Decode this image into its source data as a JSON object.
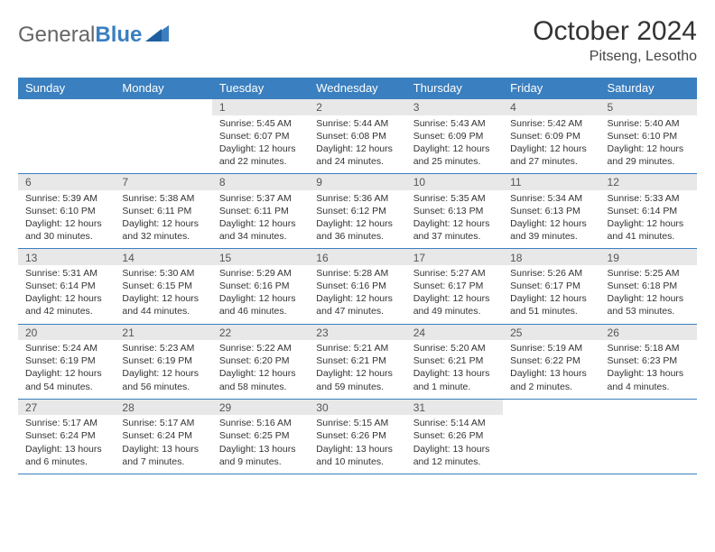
{
  "brand": {
    "part1": "General",
    "part2": "Blue"
  },
  "title": "October 2024",
  "location": "Pitseng, Lesotho",
  "colors": {
    "header_bg": "#3a7fbf",
    "header_fg": "#ffffff",
    "daynum_bg": "#e8e8e8",
    "border": "#3a7fbf",
    "text": "#333333"
  },
  "day_labels": [
    "Sunday",
    "Monday",
    "Tuesday",
    "Wednesday",
    "Thursday",
    "Friday",
    "Saturday"
  ],
  "weeks": [
    [
      null,
      null,
      {
        "n": "1",
        "sr": "Sunrise: 5:45 AM",
        "ss": "Sunset: 6:07 PM",
        "dl": "Daylight: 12 hours and 22 minutes."
      },
      {
        "n": "2",
        "sr": "Sunrise: 5:44 AM",
        "ss": "Sunset: 6:08 PM",
        "dl": "Daylight: 12 hours and 24 minutes."
      },
      {
        "n": "3",
        "sr": "Sunrise: 5:43 AM",
        "ss": "Sunset: 6:09 PM",
        "dl": "Daylight: 12 hours and 25 minutes."
      },
      {
        "n": "4",
        "sr": "Sunrise: 5:42 AM",
        "ss": "Sunset: 6:09 PM",
        "dl": "Daylight: 12 hours and 27 minutes."
      },
      {
        "n": "5",
        "sr": "Sunrise: 5:40 AM",
        "ss": "Sunset: 6:10 PM",
        "dl": "Daylight: 12 hours and 29 minutes."
      }
    ],
    [
      {
        "n": "6",
        "sr": "Sunrise: 5:39 AM",
        "ss": "Sunset: 6:10 PM",
        "dl": "Daylight: 12 hours and 30 minutes."
      },
      {
        "n": "7",
        "sr": "Sunrise: 5:38 AM",
        "ss": "Sunset: 6:11 PM",
        "dl": "Daylight: 12 hours and 32 minutes."
      },
      {
        "n": "8",
        "sr": "Sunrise: 5:37 AM",
        "ss": "Sunset: 6:11 PM",
        "dl": "Daylight: 12 hours and 34 minutes."
      },
      {
        "n": "9",
        "sr": "Sunrise: 5:36 AM",
        "ss": "Sunset: 6:12 PM",
        "dl": "Daylight: 12 hours and 36 minutes."
      },
      {
        "n": "10",
        "sr": "Sunrise: 5:35 AM",
        "ss": "Sunset: 6:13 PM",
        "dl": "Daylight: 12 hours and 37 minutes."
      },
      {
        "n": "11",
        "sr": "Sunrise: 5:34 AM",
        "ss": "Sunset: 6:13 PM",
        "dl": "Daylight: 12 hours and 39 minutes."
      },
      {
        "n": "12",
        "sr": "Sunrise: 5:33 AM",
        "ss": "Sunset: 6:14 PM",
        "dl": "Daylight: 12 hours and 41 minutes."
      }
    ],
    [
      {
        "n": "13",
        "sr": "Sunrise: 5:31 AM",
        "ss": "Sunset: 6:14 PM",
        "dl": "Daylight: 12 hours and 42 minutes."
      },
      {
        "n": "14",
        "sr": "Sunrise: 5:30 AM",
        "ss": "Sunset: 6:15 PM",
        "dl": "Daylight: 12 hours and 44 minutes."
      },
      {
        "n": "15",
        "sr": "Sunrise: 5:29 AM",
        "ss": "Sunset: 6:16 PM",
        "dl": "Daylight: 12 hours and 46 minutes."
      },
      {
        "n": "16",
        "sr": "Sunrise: 5:28 AM",
        "ss": "Sunset: 6:16 PM",
        "dl": "Daylight: 12 hours and 47 minutes."
      },
      {
        "n": "17",
        "sr": "Sunrise: 5:27 AM",
        "ss": "Sunset: 6:17 PM",
        "dl": "Daylight: 12 hours and 49 minutes."
      },
      {
        "n": "18",
        "sr": "Sunrise: 5:26 AM",
        "ss": "Sunset: 6:17 PM",
        "dl": "Daylight: 12 hours and 51 minutes."
      },
      {
        "n": "19",
        "sr": "Sunrise: 5:25 AM",
        "ss": "Sunset: 6:18 PM",
        "dl": "Daylight: 12 hours and 53 minutes."
      }
    ],
    [
      {
        "n": "20",
        "sr": "Sunrise: 5:24 AM",
        "ss": "Sunset: 6:19 PM",
        "dl": "Daylight: 12 hours and 54 minutes."
      },
      {
        "n": "21",
        "sr": "Sunrise: 5:23 AM",
        "ss": "Sunset: 6:19 PM",
        "dl": "Daylight: 12 hours and 56 minutes."
      },
      {
        "n": "22",
        "sr": "Sunrise: 5:22 AM",
        "ss": "Sunset: 6:20 PM",
        "dl": "Daylight: 12 hours and 58 minutes."
      },
      {
        "n": "23",
        "sr": "Sunrise: 5:21 AM",
        "ss": "Sunset: 6:21 PM",
        "dl": "Daylight: 12 hours and 59 minutes."
      },
      {
        "n": "24",
        "sr": "Sunrise: 5:20 AM",
        "ss": "Sunset: 6:21 PM",
        "dl": "Daylight: 13 hours and 1 minute."
      },
      {
        "n": "25",
        "sr": "Sunrise: 5:19 AM",
        "ss": "Sunset: 6:22 PM",
        "dl": "Daylight: 13 hours and 2 minutes."
      },
      {
        "n": "26",
        "sr": "Sunrise: 5:18 AM",
        "ss": "Sunset: 6:23 PM",
        "dl": "Daylight: 13 hours and 4 minutes."
      }
    ],
    [
      {
        "n": "27",
        "sr": "Sunrise: 5:17 AM",
        "ss": "Sunset: 6:24 PM",
        "dl": "Daylight: 13 hours and 6 minutes."
      },
      {
        "n": "28",
        "sr": "Sunrise: 5:17 AM",
        "ss": "Sunset: 6:24 PM",
        "dl": "Daylight: 13 hours and 7 minutes."
      },
      {
        "n": "29",
        "sr": "Sunrise: 5:16 AM",
        "ss": "Sunset: 6:25 PM",
        "dl": "Daylight: 13 hours and 9 minutes."
      },
      {
        "n": "30",
        "sr": "Sunrise: 5:15 AM",
        "ss": "Sunset: 6:26 PM",
        "dl": "Daylight: 13 hours and 10 minutes."
      },
      {
        "n": "31",
        "sr": "Sunrise: 5:14 AM",
        "ss": "Sunset: 6:26 PM",
        "dl": "Daylight: 13 hours and 12 minutes."
      },
      null,
      null
    ]
  ]
}
